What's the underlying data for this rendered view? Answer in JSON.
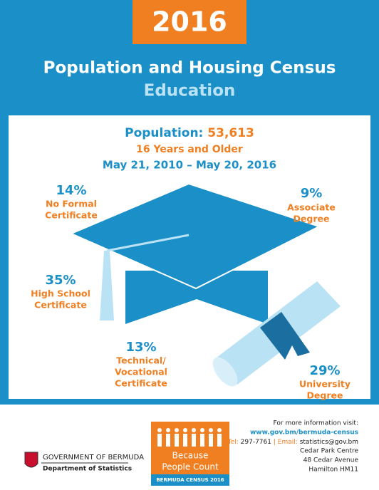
{
  "header": {
    "year": "2016",
    "title": "Population and Housing Census",
    "subtitle": "Education"
  },
  "summary": {
    "population_label": "Population:",
    "population": "53,613",
    "age": "16 Years and Older",
    "period": "May 21, 2010 – May 20, 2016"
  },
  "items": [
    {
      "percent": "14%",
      "label": [
        "No Formal",
        "Certificate"
      ]
    },
    {
      "percent": "9%",
      "label": [
        "Associate",
        "Degree"
      ]
    },
    {
      "percent": "35%",
      "label": [
        "High School",
        "Certificate"
      ]
    },
    {
      "percent": "13%",
      "label": [
        "Technical/",
        "Vocational",
        "Certificate"
      ]
    },
    {
      "percent": "29%",
      "label": [
        "University",
        "Degree"
      ]
    }
  ],
  "footer": {
    "government": "GOVERNMENT OF BERMUDA",
    "department": "Department of Statistics",
    "logo": [
      "Because",
      "People Count",
      "BERMUDA CENSUS 2016"
    ],
    "info": "For more information visit:",
    "url": "www.gov.bm/bermuda-census",
    "tel_label": "Tel:",
    "tel": "297-7761",
    "separator": "|",
    "email_label": "Email:",
    "email": "statistics@gov.bm",
    "address": [
      "Cedar Park Centre",
      "48 Cedar Avenue",
      "Hamilton HM11"
    ]
  }
}
